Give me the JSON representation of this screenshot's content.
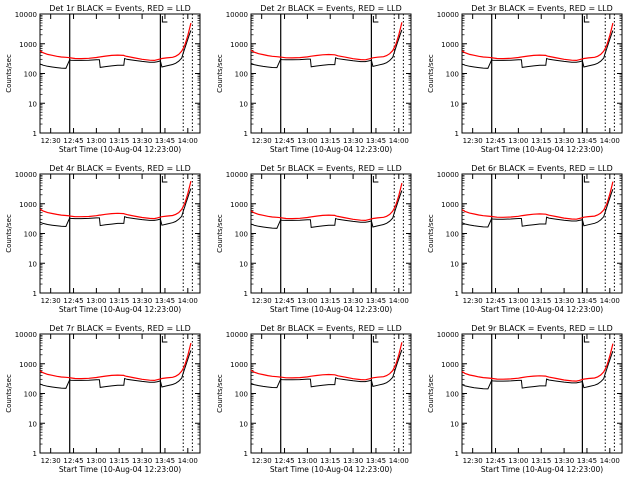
{
  "chart_data": {
    "type": "line",
    "shared": {
      "xlabel": "Start Time (10-Aug-04 12:23:00)",
      "ylabel": "Counts/sec",
      "x_ticks": [
        "12:30",
        "12:45",
        "13:00",
        "13:15",
        "13:30",
        "13:45",
        "14:00"
      ],
      "x_tick_minutes": [
        30,
        45,
        60,
        75,
        90,
        105,
        120
      ],
      "x_range_minutes": [
        23,
        128
      ],
      "y_scale": "log",
      "y_range": [
        1,
        10000
      ],
      "y_ticks": [
        "1",
        "10",
        "100",
        "1000",
        "10000"
      ],
      "y_tick_values": [
        1,
        10,
        100,
        1000,
        10000
      ],
      "vlines_solid_minutes": [
        42.5,
        102
      ],
      "vlines_dotted_minutes": [
        117,
        123
      ],
      "series_colors": {
        "events": "#000000",
        "lld": "#ff0000"
      },
      "x_minutes": [
        23,
        25,
        28,
        31,
        34,
        37,
        40,
        42.5,
        43,
        46,
        50,
        55,
        60,
        62,
        62.5,
        66,
        70,
        74,
        78,
        78.5,
        80,
        85,
        90,
        95,
        98,
        100,
        102,
        103,
        106,
        110,
        112,
        114,
        116,
        117,
        118,
        119,
        120,
        121,
        122
      ],
      "lld": [
        580,
        500,
        440,
        410,
        380,
        360,
        350,
        340,
        335,
        320,
        318,
        325,
        345,
        360,
        362,
        385,
        405,
        415,
        405,
        395,
        375,
        335,
        300,
        280,
        275,
        290,
        310,
        320,
        335,
        350,
        380,
        440,
        560,
        700,
        900,
        1300,
        1900,
        3000,
        5000
      ],
      "events": [
        210,
        190,
        175,
        165,
        158,
        152,
        150,
        290,
        280,
        275,
        275,
        280,
        290,
        290,
        160,
        170,
        180,
        190,
        190,
        320,
        300,
        275,
        255,
        240,
        240,
        250,
        265,
        165,
        180,
        200,
        220,
        260,
        330,
        480,
        700,
        1000,
        1400,
        2000,
        2800
      ]
    },
    "panels": [
      {
        "title": "Det 1r BLACK = Events, RED = LLD",
        "scale": 1.0
      },
      {
        "title": "Det 2r BLACK = Events, RED = LLD",
        "scale": 1.05
      },
      {
        "title": "Det 3r BLACK = Events, RED = LLD",
        "scale": 1.0
      },
      {
        "title": "Det 4r BLACK = Events, RED = LLD",
        "scale": 1.15
      },
      {
        "title": "Det 5r BLACK = Events, RED = LLD",
        "scale": 1.0
      },
      {
        "title": "Det 6r BLACK = Events, RED = LLD",
        "scale": 1.1
      },
      {
        "title": "Det 7r BLACK = Events, RED = LLD",
        "scale": 1.0
      },
      {
        "title": "Det 8r BLACK = Events, RED = LLD",
        "scale": 1.05
      },
      {
        "title": "Det 9r BLACK = Events, RED = LLD",
        "scale": 0.95
      }
    ]
  }
}
